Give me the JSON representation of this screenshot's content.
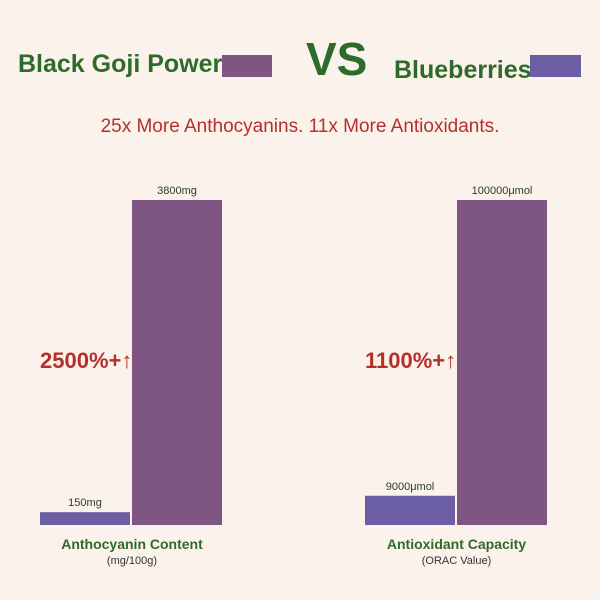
{
  "legend": {
    "brand_a": "Black Goji Power",
    "vs": "VS",
    "brand_b": "Blueberries",
    "color_a": "#7f5584",
    "color_b": "#6c5ea4"
  },
  "subtitle": "25x More Anthocyanins. 11x More Antioxidants.",
  "chart_data": [
    {
      "type": "bar",
      "categories": [
        "Blueberries",
        "Black Goji Power"
      ],
      "values": [
        150,
        3800
      ],
      "value_labels": [
        "150mg",
        "3800mg"
      ],
      "colors": [
        "#6c5ea4",
        "#7f5584"
      ],
      "ylim": [
        0,
        3800
      ],
      "increase_label": "2500%+↑",
      "xlabel": "Anthocyanin Content",
      "xlabel_sub": "(mg/100g)"
    },
    {
      "type": "bar",
      "categories": [
        "Blueberries",
        "Black Goji Power"
      ],
      "values": [
        9000,
        100000
      ],
      "value_labels": [
        "9000μmol",
        "100000μmol"
      ],
      "colors": [
        "#6c5ea4",
        "#7f5584"
      ],
      "ylim": [
        0,
        100000
      ],
      "increase_label": "1100%+↑",
      "xlabel": "Antioxidant Capacity",
      "xlabel_sub": "(ORAC Value)"
    }
  ]
}
